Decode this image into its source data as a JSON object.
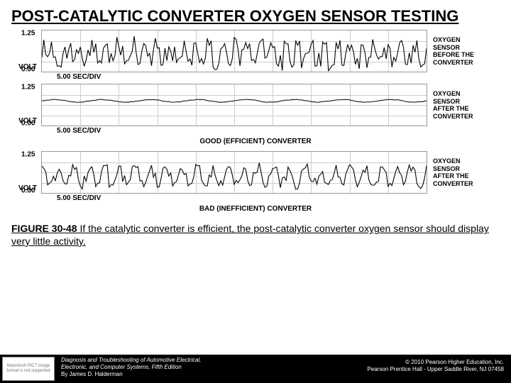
{
  "title": "POST-CATALYTIC CONVERTER OXYGEN SENSOR TESTING",
  "charts": {
    "volt_label": "VOLT",
    "xaxis_label": "5.00 SEC/DIV",
    "yticks": [
      "1.25",
      "0.00"
    ],
    "ylim": [
      0,
      1.25
    ],
    "grid_color": "#cccccc",
    "line_color": "#000000",
    "background_color": "#ffffff",
    "panels": [
      {
        "side_label": [
          "OXYGEN",
          "SENSOR",
          "BEFORE THE",
          "CONVERTER"
        ],
        "waveform_type": "noisy",
        "baseline": 0.55,
        "amplitude": 0.45,
        "cycles": 30
      },
      {
        "side_label": [
          "OXYGEN",
          "SENSOR",
          "AFTER THE",
          "CONVERTER"
        ],
        "waveform_type": "flat",
        "baseline": 0.75,
        "amplitude": 0.04,
        "cycles": 8
      },
      {
        "side_label": [
          "OXYGEN",
          "SENSOR",
          "AFTER THE",
          "CONVERTER"
        ],
        "waveform_type": "midnoisy",
        "baseline": 0.5,
        "amplitude": 0.35,
        "cycles": 25
      }
    ],
    "captions": {
      "good": "GOOD (EFFICIENT) CONVERTER",
      "bad": "BAD (INEFFICIENT) CONVERTER"
    }
  },
  "figure_caption_bold": "FIGURE 30-48",
  "figure_caption_rest": " If the catalytic converter is efficient, the post-catalytic converter oxygen sensor should display very little activity.",
  "footer": {
    "logo_text": "Macintosh PICT image format is not supported",
    "left_line1": "Diagnosis and Troubleshooting of Automotive Electrical,",
    "left_line2": "Electronic, and Computer Systems, Fifth Edition",
    "left_line3": "By James D. Halderman",
    "right_line1": "© 2010 Pearson Higher Education, Inc.",
    "right_line2": "Pearson Prentice Hall - Upper Saddle River, NJ 07458"
  }
}
